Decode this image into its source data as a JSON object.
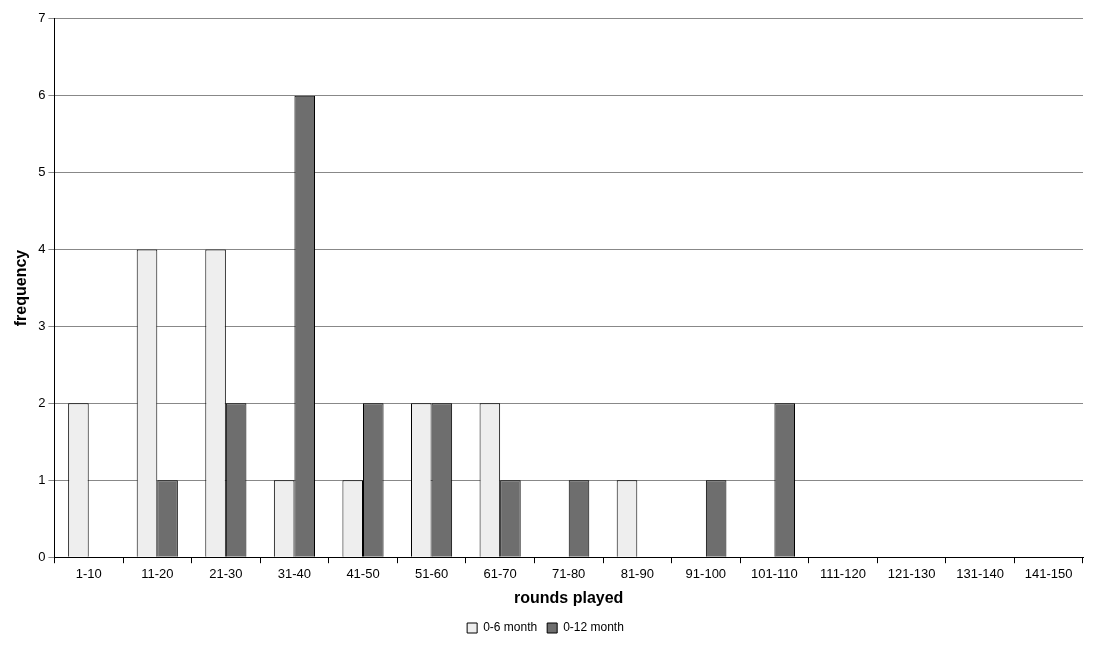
{
  "chart_data": {
    "type": "bar",
    "xlabel": "rounds played",
    "ylabel": "frequency",
    "categories": [
      "1-10",
      "11-20",
      "21-30",
      "31-40",
      "41-50",
      "51-60",
      "61-70",
      "71-80",
      "81-90",
      "91-100",
      "101-110",
      "111-120",
      "121-130",
      "131-140",
      "141-150"
    ],
    "series": [
      {
        "name": "0-6 month",
        "color": "#eeeeee",
        "values": [
          2,
          4,
          4,
          1,
          1,
          2,
          2,
          0,
          1,
          0,
          0,
          0,
          0,
          0,
          0
        ]
      },
      {
        "name": "0-12 month",
        "color": "#6e6e6e",
        "values": [
          0,
          1,
          2,
          6,
          2,
          2,
          1,
          1,
          0,
          1,
          2,
          0,
          0,
          0,
          0
        ]
      }
    ],
    "ylim": [
      0,
      7
    ],
    "yticks": [
      0,
      1,
      2,
      3,
      4,
      5,
      6,
      7
    ],
    "grid": "y",
    "legend": "bottom"
  }
}
